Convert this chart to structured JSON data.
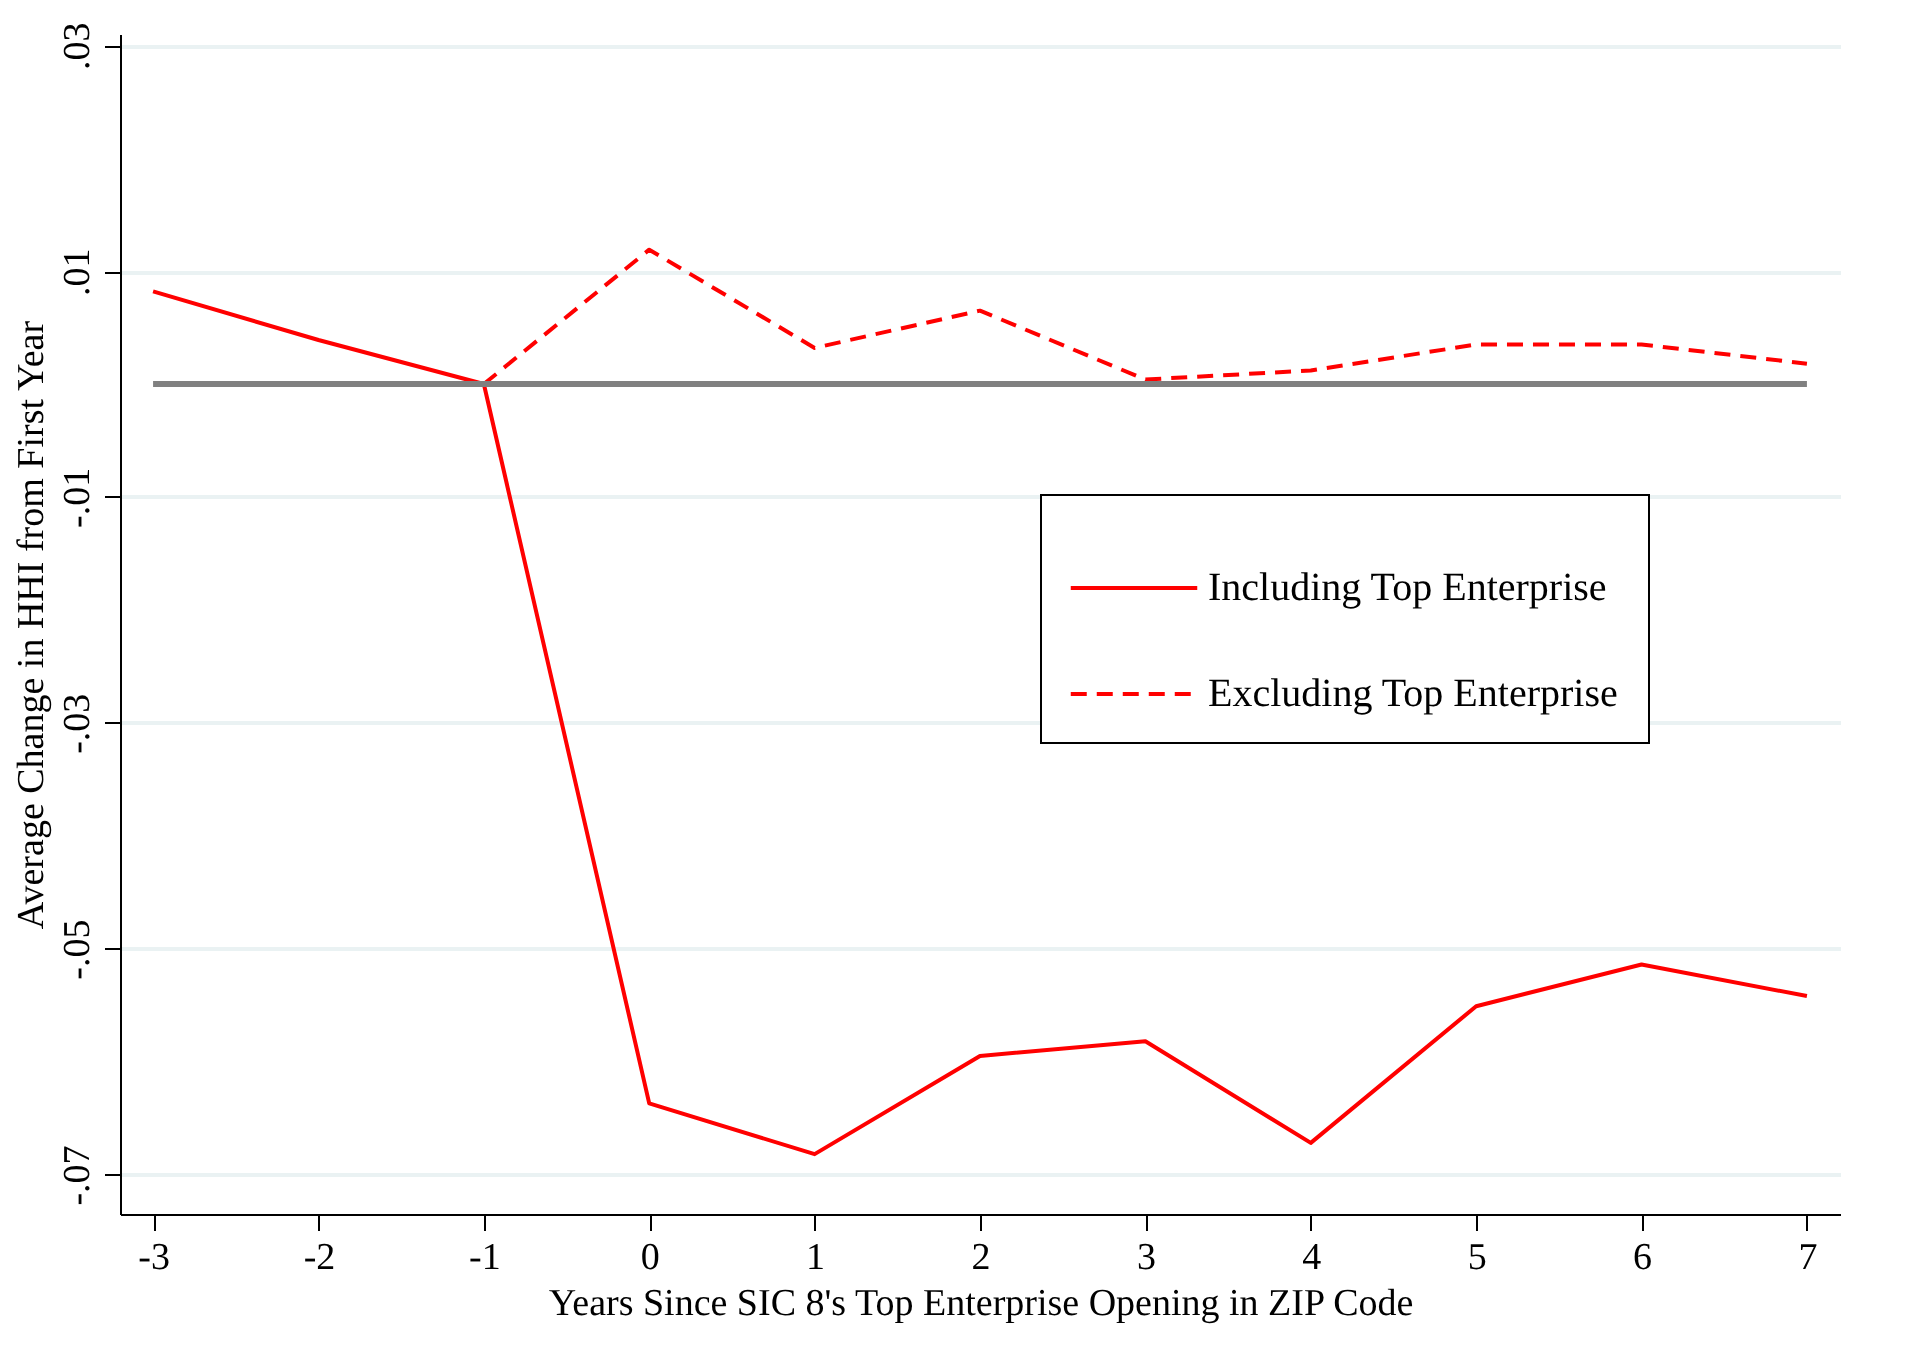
{
  "chart_data": {
    "type": "line",
    "xlabel": "Years Since SIC 8's Top Enterprise Opening in ZIP Code",
    "ylabel": "Average Change in HHI from First Year",
    "x": [
      -3,
      -2,
      -1,
      0,
      1,
      2,
      3,
      4,
      5,
      6,
      7
    ],
    "series": [
      {
        "name": "Including Top Enterprise",
        "color": "#ff0000",
        "line_style": "solid",
        "values": [
          0.0082,
          0.0039,
          0,
          -0.0637,
          -0.0682,
          -0.0595,
          -0.0582,
          -0.0672,
          -0.0551,
          -0.0514,
          -0.0542
        ]
      },
      {
        "name": "Excluding Top Enterprise",
        "color": "#ff0000",
        "line_style": "dashed",
        "values": [
          null,
          null,
          0,
          0.0119,
          0.0032,
          0.0065,
          0.0004,
          0.0012,
          0.0035,
          0.0035,
          0.0018
        ]
      }
    ],
    "xlim": [
      -3.2,
      7.2
    ],
    "xticks": [
      -3,
      -2,
      -1,
      0,
      1,
      2,
      3,
      4,
      5,
      6,
      7
    ],
    "ylim": [
      -0.0735,
      0.031
    ],
    "yticks": [
      {
        "value": 0.03,
        "label": ".03"
      },
      {
        "value": 0.01,
        "label": ".01"
      },
      {
        "value": -0.01,
        "label": "-.01"
      },
      {
        "value": -0.03,
        "label": "-.03"
      },
      {
        "value": -0.05,
        "label": "-.05"
      },
      {
        "value": -0.07,
        "label": "-.07"
      }
    ],
    "ref_lines": [
      {
        "axis": "y",
        "value": 0,
        "color": "#808080"
      }
    ],
    "grid": "y",
    "legend": "right",
    "marker": "none"
  }
}
